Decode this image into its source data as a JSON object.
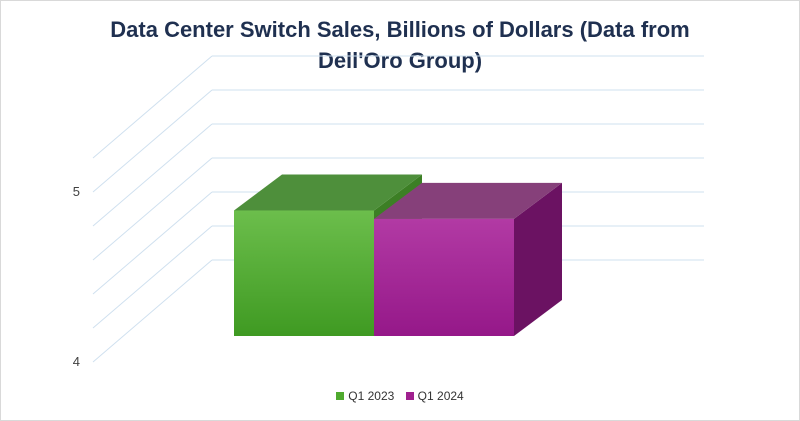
{
  "chart_data": {
    "type": "bar",
    "title_line1": "Data Center Switch Sales, Billions of Dollars (Data from",
    "title_line2": "Dell'Oro Group)",
    "categories": [
      ""
    ],
    "series": [
      {
        "name": "Q1 2023",
        "values": [
          4.75
        ],
        "color": "#4faa2e"
      },
      {
        "name": "Q1 2024",
        "values": [
          4.7
        ],
        "color": "#a0208f"
      }
    ],
    "ylim": [
      4,
      5
    ],
    "y_ticks": [
      4,
      5
    ],
    "y_tick_labels": [
      "4",
      "5"
    ],
    "grid": true,
    "legend_position": "bottom",
    "is_3d": true
  }
}
